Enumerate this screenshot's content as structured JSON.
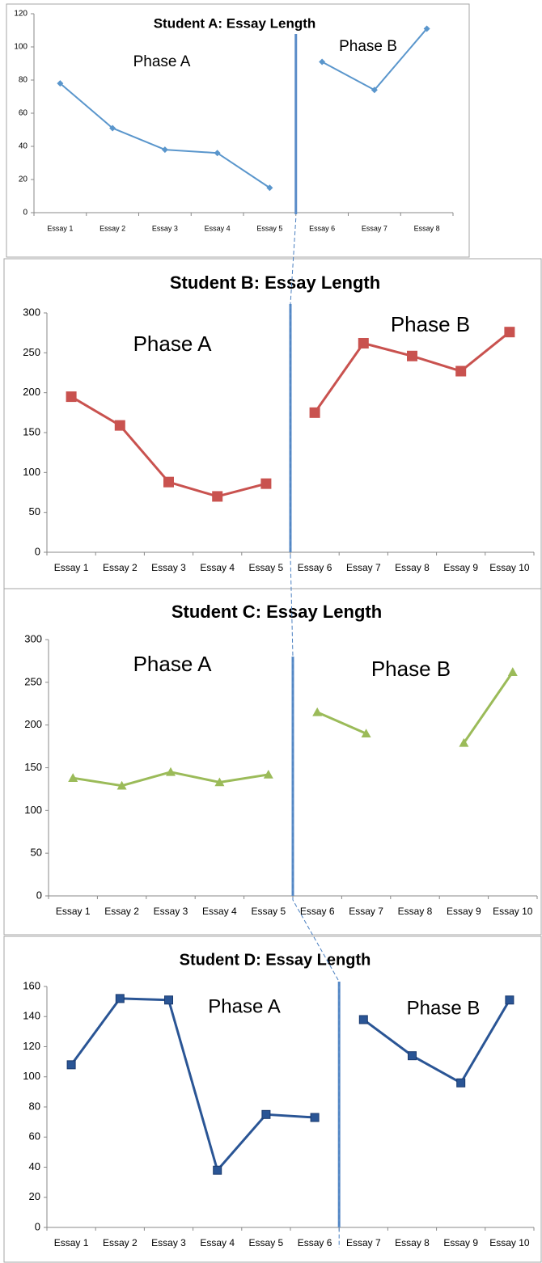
{
  "chart_data": [
    {
      "type": "line",
      "title": "Student A: Essay Length",
      "categories": [
        "Essay 1",
        "Essay 2",
        "Essay 3",
        "Essay 4",
        "Essay 5",
        "Essay 6",
        "Essay 7",
        "Essay 8"
      ],
      "series": [
        {
          "name": "Phase A",
          "color": "#5a96cc",
          "values": [
            78,
            51,
            38,
            36,
            15,
            null,
            null,
            null
          ]
        },
        {
          "name": "Phase B",
          "color": "#5a96cc",
          "values": [
            null,
            null,
            null,
            null,
            null,
            91,
            74,
            111
          ]
        }
      ],
      "marker": "diamond",
      "ylim": [
        0,
        120
      ],
      "yticks": [
        0,
        20,
        40,
        60,
        80,
        100,
        120
      ]
    },
    {
      "type": "line",
      "title": "Student B: Essay Length",
      "categories": [
        "Essay 1",
        "Essay 2",
        "Essay 3",
        "Essay 4",
        "Essay 5",
        "Essay 6",
        "Essay 7",
        "Essay 8",
        "Essay 9",
        "Essay 10"
      ],
      "series": [
        {
          "name": "Phase A",
          "color": "#c9524f",
          "values": [
            195,
            159,
            88,
            70,
            86,
            null,
            null,
            null,
            null,
            null
          ]
        },
        {
          "name": "Phase B",
          "color": "#c9524f",
          "values": [
            null,
            null,
            null,
            null,
            null,
            175,
            262,
            246,
            227,
            276
          ]
        }
      ],
      "marker": "square",
      "ylim": [
        0,
        300
      ],
      "yticks": [
        0,
        50,
        100,
        150,
        200,
        250,
        300
      ]
    },
    {
      "type": "line",
      "title": "Student C: Essay Length",
      "categories": [
        "Essay 1",
        "Essay 2",
        "Essay 3",
        "Essay 4",
        "Essay 5",
        "Essay 6",
        "Essay 7",
        "Essay 8",
        "Essay 9",
        "Essay 10"
      ],
      "series": [
        {
          "name": "Phase A",
          "color": "#9bbb59",
          "values": [
            138,
            129,
            145,
            133,
            142,
            null,
            null,
            null,
            null,
            null
          ]
        },
        {
          "name": "Phase B",
          "color": "#9bbb59",
          "values": [
            null,
            null,
            null,
            null,
            null,
            215,
            190,
            null,
            179,
            262
          ]
        }
      ],
      "marker": "triangle",
      "ylim": [
        0,
        300
      ],
      "yticks": [
        0,
        50,
        100,
        150,
        200,
        250,
        300
      ]
    },
    {
      "type": "line",
      "title": "Student D: Essay Length",
      "categories": [
        "Essay 1",
        "Essay 2",
        "Essay 3",
        "Essay 4",
        "Essay 5",
        "Essay 6",
        "Essay 7",
        "Essay 8",
        "Essay 9",
        "Essay 10"
      ],
      "series": [
        {
          "name": "Phase A",
          "color": "#2a5595",
          "values": [
            108,
            152,
            151,
            38,
            75,
            73,
            null,
            null,
            null,
            null
          ]
        },
        {
          "name": "Phase B",
          "color": "#2a5595",
          "values": [
            null,
            null,
            null,
            null,
            null,
            null,
            138,
            114,
            96,
            151
          ]
        }
      ],
      "marker": "square",
      "ylim": [
        0,
        160
      ],
      "yticks": [
        0,
        20,
        40,
        60,
        80,
        100,
        120,
        140,
        160
      ]
    }
  ]
}
